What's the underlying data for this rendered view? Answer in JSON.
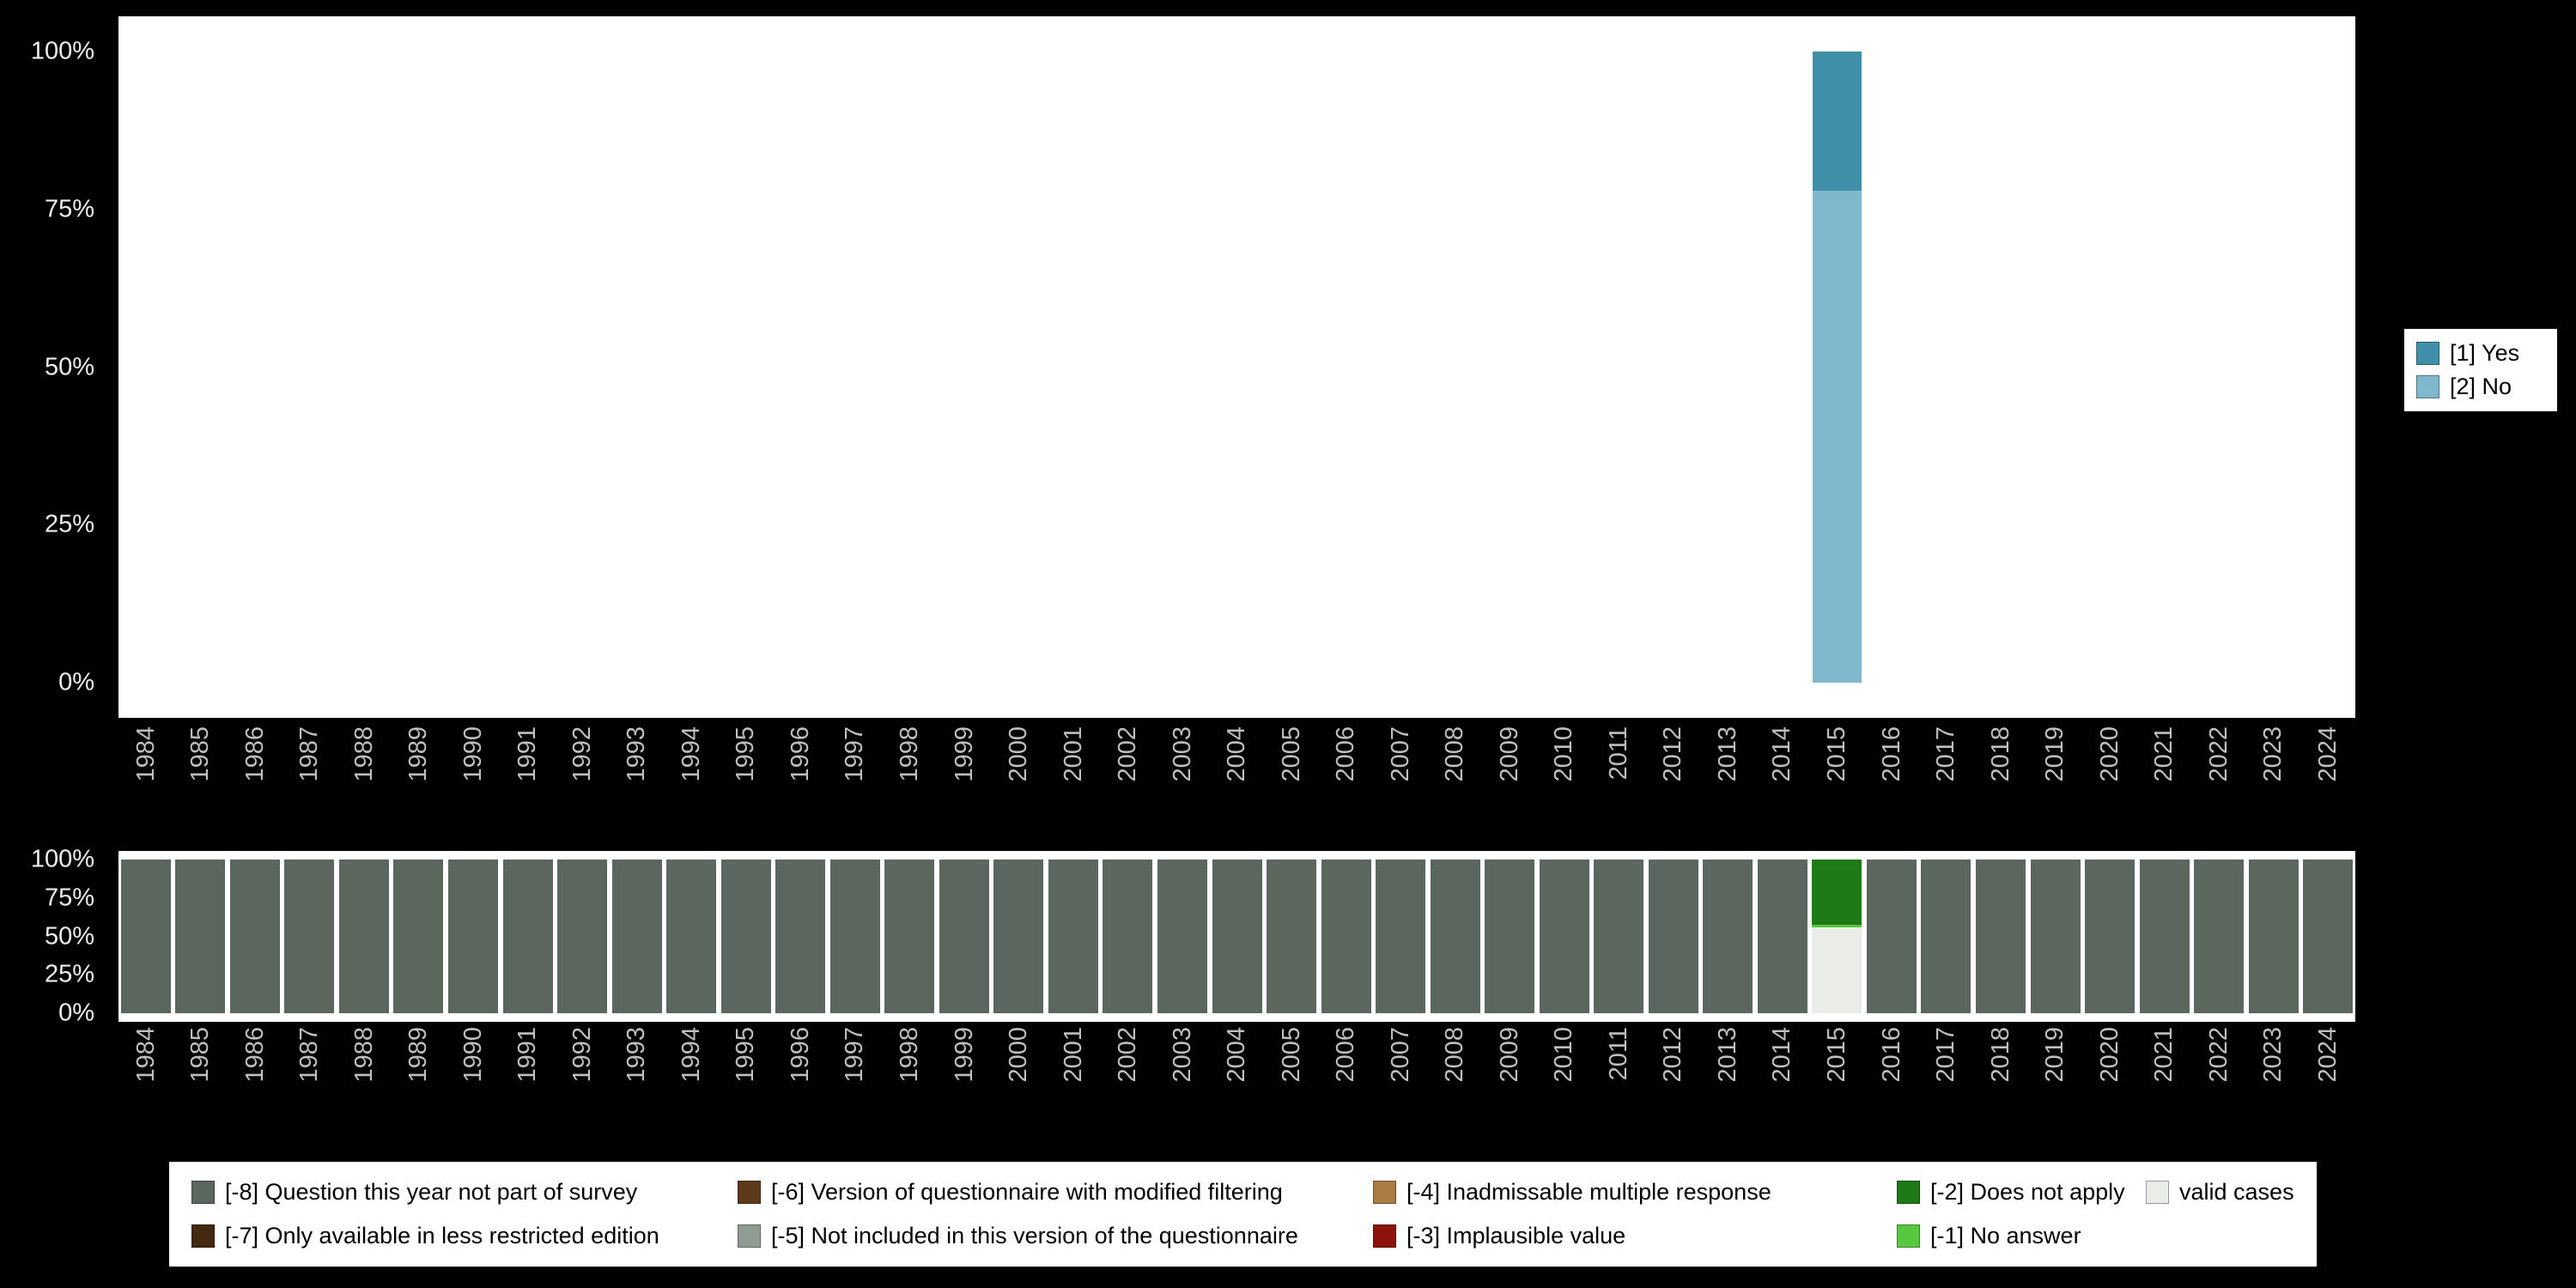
{
  "page": {
    "background": "#000000"
  },
  "colors": {
    "plot_bg": "#ffffff",
    "ytick_text": "#ededed",
    "xtick_text": "#bfbfbf",
    "legend_bg": "#ffffff",
    "legend_text": "#000000"
  },
  "years": [
    "1984",
    "1985",
    "1986",
    "1987",
    "1988",
    "1989",
    "1990",
    "1991",
    "1992",
    "1993",
    "1994",
    "1995",
    "1996",
    "1997",
    "1998",
    "1999",
    "2000",
    "2001",
    "2002",
    "2003",
    "2004",
    "2005",
    "2006",
    "2007",
    "2008",
    "2009",
    "2010",
    "2011",
    "2012",
    "2013",
    "2014",
    "2015",
    "2016",
    "2017",
    "2018",
    "2019",
    "2020",
    "2021",
    "2022",
    "2023",
    "2024"
  ],
  "top_chart": {
    "yticks": [
      "100%",
      "75%",
      "50%",
      "25%",
      "0%"
    ],
    "bars": [
      {
        "year": "2015",
        "segments": [
          {
            "label": "[1] Yes",
            "color": "#3f8fa9",
            "pct": 22
          },
          {
            "label": "[2] No",
            "color": "#7fb8cc",
            "pct": 78
          }
        ]
      }
    ],
    "legend": [
      {
        "label": "[1] Yes",
        "color": "#3f8fa9"
      },
      {
        "label": "[2] No",
        "color": "#7fb8cc"
      }
    ]
  },
  "bottom_chart": {
    "yticks": [
      "100%",
      "75%",
      "50%",
      "25%",
      "0%"
    ],
    "default_segments": [
      {
        "label": "[-8] Question this year not part of survey",
        "color": "#5b665e",
        "pct": 100
      }
    ],
    "special_bars": [
      {
        "year": "2015",
        "segments": [
          {
            "label": "[-2] Does not apply",
            "color": "#1e7a16",
            "pct": 42.5
          },
          {
            "label": "[-1] No answer",
            "color": "#57c83d",
            "pct": 1.5
          },
          {
            "label": "valid cases",
            "color": "#e9ece7",
            "pct": 56
          }
        ]
      }
    ],
    "legend": [
      {
        "label": "[-8] Question this year not part of survey",
        "color": "#5b665e"
      },
      {
        "label": "[-7] Only available in less restricted edition",
        "color": "#43290d"
      },
      {
        "label": "[-6] Version of questionnaire with modified filtering",
        "color": "#5d3a1c"
      },
      {
        "label": "[-5] Not included in this version of the questionnaire",
        "color": "#909b91"
      },
      {
        "label": "[-4] Inadmissable multiple response",
        "color": "#a97c44"
      },
      {
        "label": "[-3] Implausible value",
        "color": "#8c130c"
      },
      {
        "label": "[-2] Does not apply",
        "color": "#1e7a16"
      },
      {
        "label": "[-1] No answer",
        "color": "#57c83d"
      },
      {
        "label": "valid cases",
        "color": "#e9ece7"
      }
    ]
  },
  "chart_data": [
    {
      "type": "bar",
      "stacked": true,
      "title": "",
      "xlabel": "",
      "ylabel": "",
      "ylim": [
        0,
        100
      ],
      "ytick_labels": [
        "0%",
        "25%",
        "50%",
        "75%",
        "100%"
      ],
      "grid": false,
      "legend_position": "right",
      "categories": [
        "1984",
        "1985",
        "1986",
        "1987",
        "1988",
        "1989",
        "1990",
        "1991",
        "1992",
        "1993",
        "1994",
        "1995",
        "1996",
        "1997",
        "1998",
        "1999",
        "2000",
        "2001",
        "2002",
        "2003",
        "2004",
        "2005",
        "2006",
        "2007",
        "2008",
        "2009",
        "2010",
        "2011",
        "2012",
        "2013",
        "2014",
        "2015",
        "2016",
        "2017",
        "2018",
        "2019",
        "2020",
        "2021",
        "2022",
        "2023",
        "2024"
      ],
      "series": [
        {
          "name": "[1] Yes",
          "color": "#3f8fa9",
          "values": [
            0,
            0,
            0,
            0,
            0,
            0,
            0,
            0,
            0,
            0,
            0,
            0,
            0,
            0,
            0,
            0,
            0,
            0,
            0,
            0,
            0,
            0,
            0,
            0,
            0,
            0,
            0,
            0,
            0,
            0,
            0,
            22,
            0,
            0,
            0,
            0,
            0,
            0,
            0,
            0,
            0
          ]
        },
        {
          "name": "[2] No",
          "color": "#7fb8cc",
          "values": [
            0,
            0,
            0,
            0,
            0,
            0,
            0,
            0,
            0,
            0,
            0,
            0,
            0,
            0,
            0,
            0,
            0,
            0,
            0,
            0,
            0,
            0,
            0,
            0,
            0,
            0,
            0,
            0,
            0,
            0,
            0,
            78,
            0,
            0,
            0,
            0,
            0,
            0,
            0,
            0,
            0
          ]
        }
      ]
    },
    {
      "type": "bar",
      "stacked": true,
      "title": "",
      "xlabel": "",
      "ylabel": "",
      "ylim": [
        0,
        100
      ],
      "ytick_labels": [
        "0%",
        "25%",
        "50%",
        "75%",
        "100%"
      ],
      "grid": false,
      "legend_position": "bottom",
      "categories": [
        "1984",
        "1985",
        "1986",
        "1987",
        "1988",
        "1989",
        "1990",
        "1991",
        "1992",
        "1993",
        "1994",
        "1995",
        "1996",
        "1997",
        "1998",
        "1999",
        "2000",
        "2001",
        "2002",
        "2003",
        "2004",
        "2005",
        "2006",
        "2007",
        "2008",
        "2009",
        "2010",
        "2011",
        "2012",
        "2013",
        "2014",
        "2015",
        "2016",
        "2017",
        "2018",
        "2019",
        "2020",
        "2021",
        "2022",
        "2023",
        "2024"
      ],
      "series": [
        {
          "name": "[-8] Question this year not part of survey",
          "color": "#5b665e",
          "values": [
            100,
            100,
            100,
            100,
            100,
            100,
            100,
            100,
            100,
            100,
            100,
            100,
            100,
            100,
            100,
            100,
            100,
            100,
            100,
            100,
            100,
            100,
            100,
            100,
            100,
            100,
            100,
            100,
            100,
            100,
            100,
            0,
            100,
            100,
            100,
            100,
            100,
            100,
            100,
            100,
            100
          ]
        },
        {
          "name": "[-2] Does not apply",
          "color": "#1e7a16",
          "values": [
            0,
            0,
            0,
            0,
            0,
            0,
            0,
            0,
            0,
            0,
            0,
            0,
            0,
            0,
            0,
            0,
            0,
            0,
            0,
            0,
            0,
            0,
            0,
            0,
            0,
            0,
            0,
            0,
            0,
            0,
            0,
            42.5,
            0,
            0,
            0,
            0,
            0,
            0,
            0,
            0,
            0
          ]
        },
        {
          "name": "[-1] No answer",
          "color": "#57c83d",
          "values": [
            0,
            0,
            0,
            0,
            0,
            0,
            0,
            0,
            0,
            0,
            0,
            0,
            0,
            0,
            0,
            0,
            0,
            0,
            0,
            0,
            0,
            0,
            0,
            0,
            0,
            0,
            0,
            0,
            0,
            0,
            0,
            1.5,
            0,
            0,
            0,
            0,
            0,
            0,
            0,
            0,
            0
          ]
        },
        {
          "name": "valid cases",
          "color": "#e9ece7",
          "values": [
            0,
            0,
            0,
            0,
            0,
            0,
            0,
            0,
            0,
            0,
            0,
            0,
            0,
            0,
            0,
            0,
            0,
            0,
            0,
            0,
            0,
            0,
            0,
            0,
            0,
            0,
            0,
            0,
            0,
            0,
            0,
            56,
            0,
            0,
            0,
            0,
            0,
            0,
            0,
            0,
            0
          ]
        }
      ],
      "legend_entries_all": [
        "[-8] Question this year not part of survey",
        "[-7] Only available in less restricted edition",
        "[-6] Version of questionnaire with modified filtering",
        "[-5] Not included in this version of the questionnaire",
        "[-4] Inadmissable multiple response",
        "[-3] Implausible value",
        "[-2] Does not apply",
        "[-1] No answer",
        "valid cases"
      ]
    }
  ]
}
